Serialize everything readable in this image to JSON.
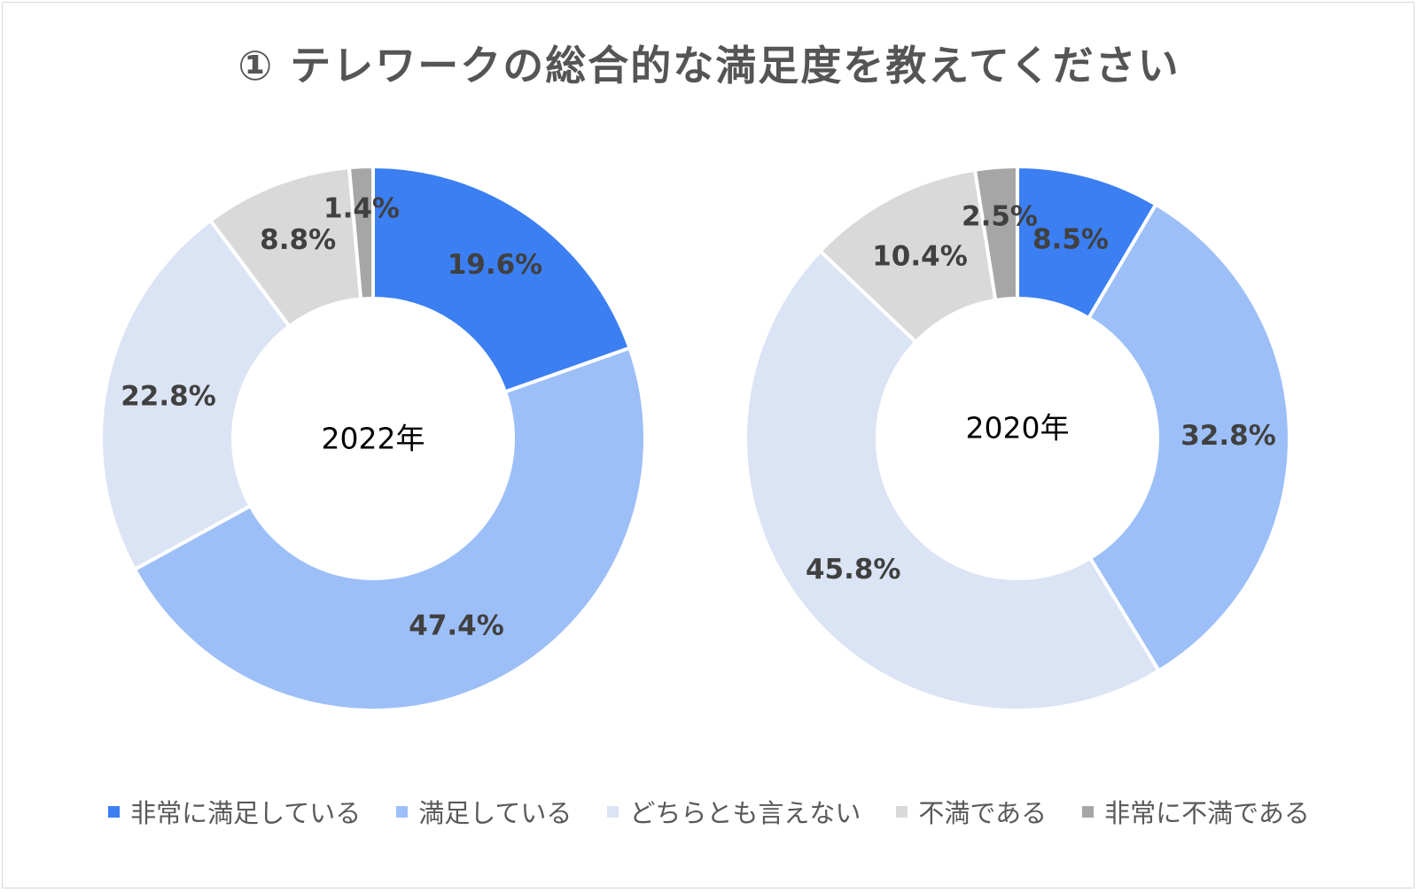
{
  "chart_data": {
    "type": "pie",
    "title": "① テレワークの総合的な満足度を教えてください",
    "legend_position": "bottom",
    "categories": [
      "非常に満足している",
      "満足している",
      "どちらとも言えない",
      "不満である",
      "非常に不満である"
    ],
    "colors": [
      "#3b7ff2",
      "#9dbff8",
      "#dbe4f4",
      "#d9d9d9",
      "#a6a6a6"
    ],
    "series": [
      {
        "name": "2022年",
        "values": [
          19.6,
          47.4,
          22.8,
          8.8,
          1.4
        ],
        "labels": [
          "19.6%",
          "47.4%",
          "22.8%",
          "8.8%",
          "1.4%"
        ]
      },
      {
        "name": "2020年",
        "values": [
          8.5,
          32.8,
          45.8,
          10.4,
          2.5
        ],
        "labels": [
          "8.5%",
          "32.8%",
          "45.8%",
          "10.4%",
          "2.5%"
        ]
      }
    ]
  }
}
